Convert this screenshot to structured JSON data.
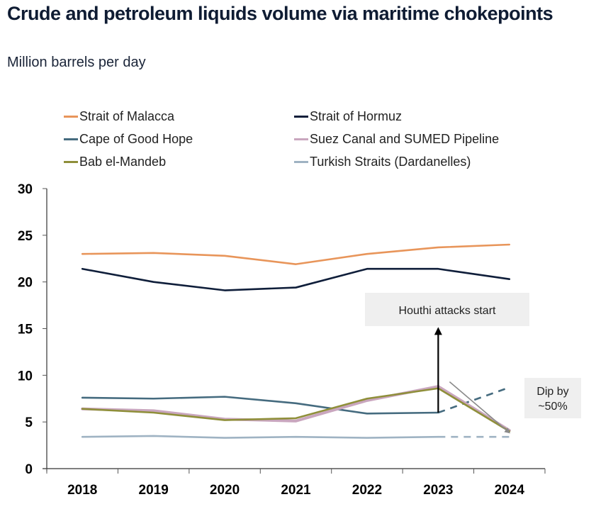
{
  "header": {
    "title": "Crude and petroleum liquids volume via maritime chokepoints",
    "subtitle": "Million barrels per day"
  },
  "chart_data": {
    "type": "line",
    "title": "Crude and petroleum liquids volume via maritime chokepoints",
    "subtitle": "Million barrels per day",
    "xlabel": "",
    "ylabel": "Million barrels per day",
    "x": [
      "2018",
      "2019",
      "2020",
      "2021",
      "2022",
      "2023",
      "2024"
    ],
    "ylim": [
      0,
      30
    ],
    "yticks": [
      0,
      5,
      10,
      15,
      20,
      25,
      30
    ],
    "grid": false,
    "legend_position": "top",
    "series": [
      {
        "name": "Strait of Malacca",
        "color": "#e8955a",
        "values": [
          23.0,
          23.1,
          22.8,
          21.9,
          23.0,
          23.7,
          24.0
        ],
        "dashed_from_index": null
      },
      {
        "name": "Strait of Hormuz",
        "color": "#0f1e3a",
        "values": [
          21.4,
          20.0,
          19.1,
          19.4,
          21.4,
          21.4,
          20.3
        ],
        "dashed_from_index": null
      },
      {
        "name": "Cape of Good Hope",
        "color": "#456b7f",
        "values": [
          7.6,
          7.5,
          7.7,
          7.0,
          5.9,
          6.0,
          8.7
        ],
        "dashed_from_index": 5
      },
      {
        "name": "Suez Canal and SUMED Pipeline",
        "color": "#c9a6be",
        "values": [
          6.4,
          6.2,
          5.3,
          5.1,
          7.3,
          8.8,
          4.1
        ],
        "dashed_from_index": null
      },
      {
        "name": "Bab el-Mandeb",
        "color": "#8f8f3a",
        "values": [
          6.4,
          6.0,
          5.2,
          5.4,
          7.5,
          8.6,
          4.0
        ],
        "dashed_from_index": null
      },
      {
        "name": "Turkish Straits (Dardanelles)",
        "color": "#9fb3c3",
        "values": [
          3.4,
          3.5,
          3.3,
          3.4,
          3.3,
          3.4,
          3.4
        ],
        "dashed_from_index": 5
      }
    ],
    "annotations": [
      {
        "text": "Houthi attacks start",
        "x": "2023",
        "arrow": "up",
        "arrow_from_value": 6.0,
        "arrow_to_value": 15.3
      },
      {
        "text_lines": [
          "Dip by",
          "~50%"
        ],
        "arrow_from": {
          "x": "2023",
          "value": 9.3
        },
        "arrow_to": {
          "x": "2024",
          "value": 4.3
        }
      }
    ]
  }
}
